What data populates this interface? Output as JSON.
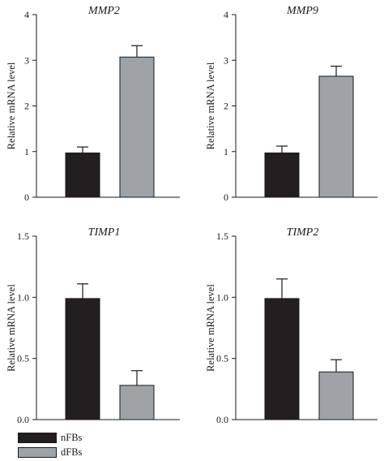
{
  "colors": {
    "nFBs": "#231f20",
    "dFBs": "#9ea3a8",
    "axis": "#1a1a1a"
  },
  "legend": [
    {
      "label": "nFBs",
      "color": "#231f20"
    },
    {
      "label": "dFBs",
      "color": "#9ea3a8"
    }
  ],
  "chart_data": [
    {
      "type": "bar",
      "title": "MMP2",
      "ylabel": "Relative mRNA level",
      "categories": [
        "nFBs",
        "dFBs"
      ],
      "values": [
        0.97,
        3.07
      ],
      "errors": [
        0.13,
        0.25
      ],
      "ylim": [
        0,
        4
      ],
      "yticks": [
        "0",
        "1",
        "2",
        "3",
        "4"
      ],
      "grid": false
    },
    {
      "type": "bar",
      "title": "MMP9",
      "ylabel": "Relative mRNA level",
      "categories": [
        "nFBs",
        "dFBs"
      ],
      "values": [
        0.97,
        2.65
      ],
      "errors": [
        0.15,
        0.22
      ],
      "ylim": [
        0,
        4
      ],
      "yticks": [
        "0",
        "1",
        "2",
        "3",
        "4"
      ],
      "grid": false
    },
    {
      "type": "bar",
      "title": "TIMP1",
      "ylabel": "Relative mRNA level",
      "categories": [
        "nFBs",
        "dFBs"
      ],
      "values": [
        0.99,
        0.28
      ],
      "errors": [
        0.12,
        0.12
      ],
      "ylim": [
        0,
        1.5
      ],
      "yticks": [
        "0.0",
        "0.5",
        "1.0",
        "1.5"
      ],
      "grid": false
    },
    {
      "type": "bar",
      "title": "TIMP2",
      "ylabel": "Relative mRNA level",
      "categories": [
        "nFBs",
        "dFBs"
      ],
      "values": [
        0.99,
        0.39
      ],
      "errors": [
        0.16,
        0.1
      ],
      "ylim": [
        0,
        1.5
      ],
      "yticks": [
        "0.0",
        "0.5",
        "1.0",
        "1.5"
      ],
      "grid": false
    }
  ]
}
